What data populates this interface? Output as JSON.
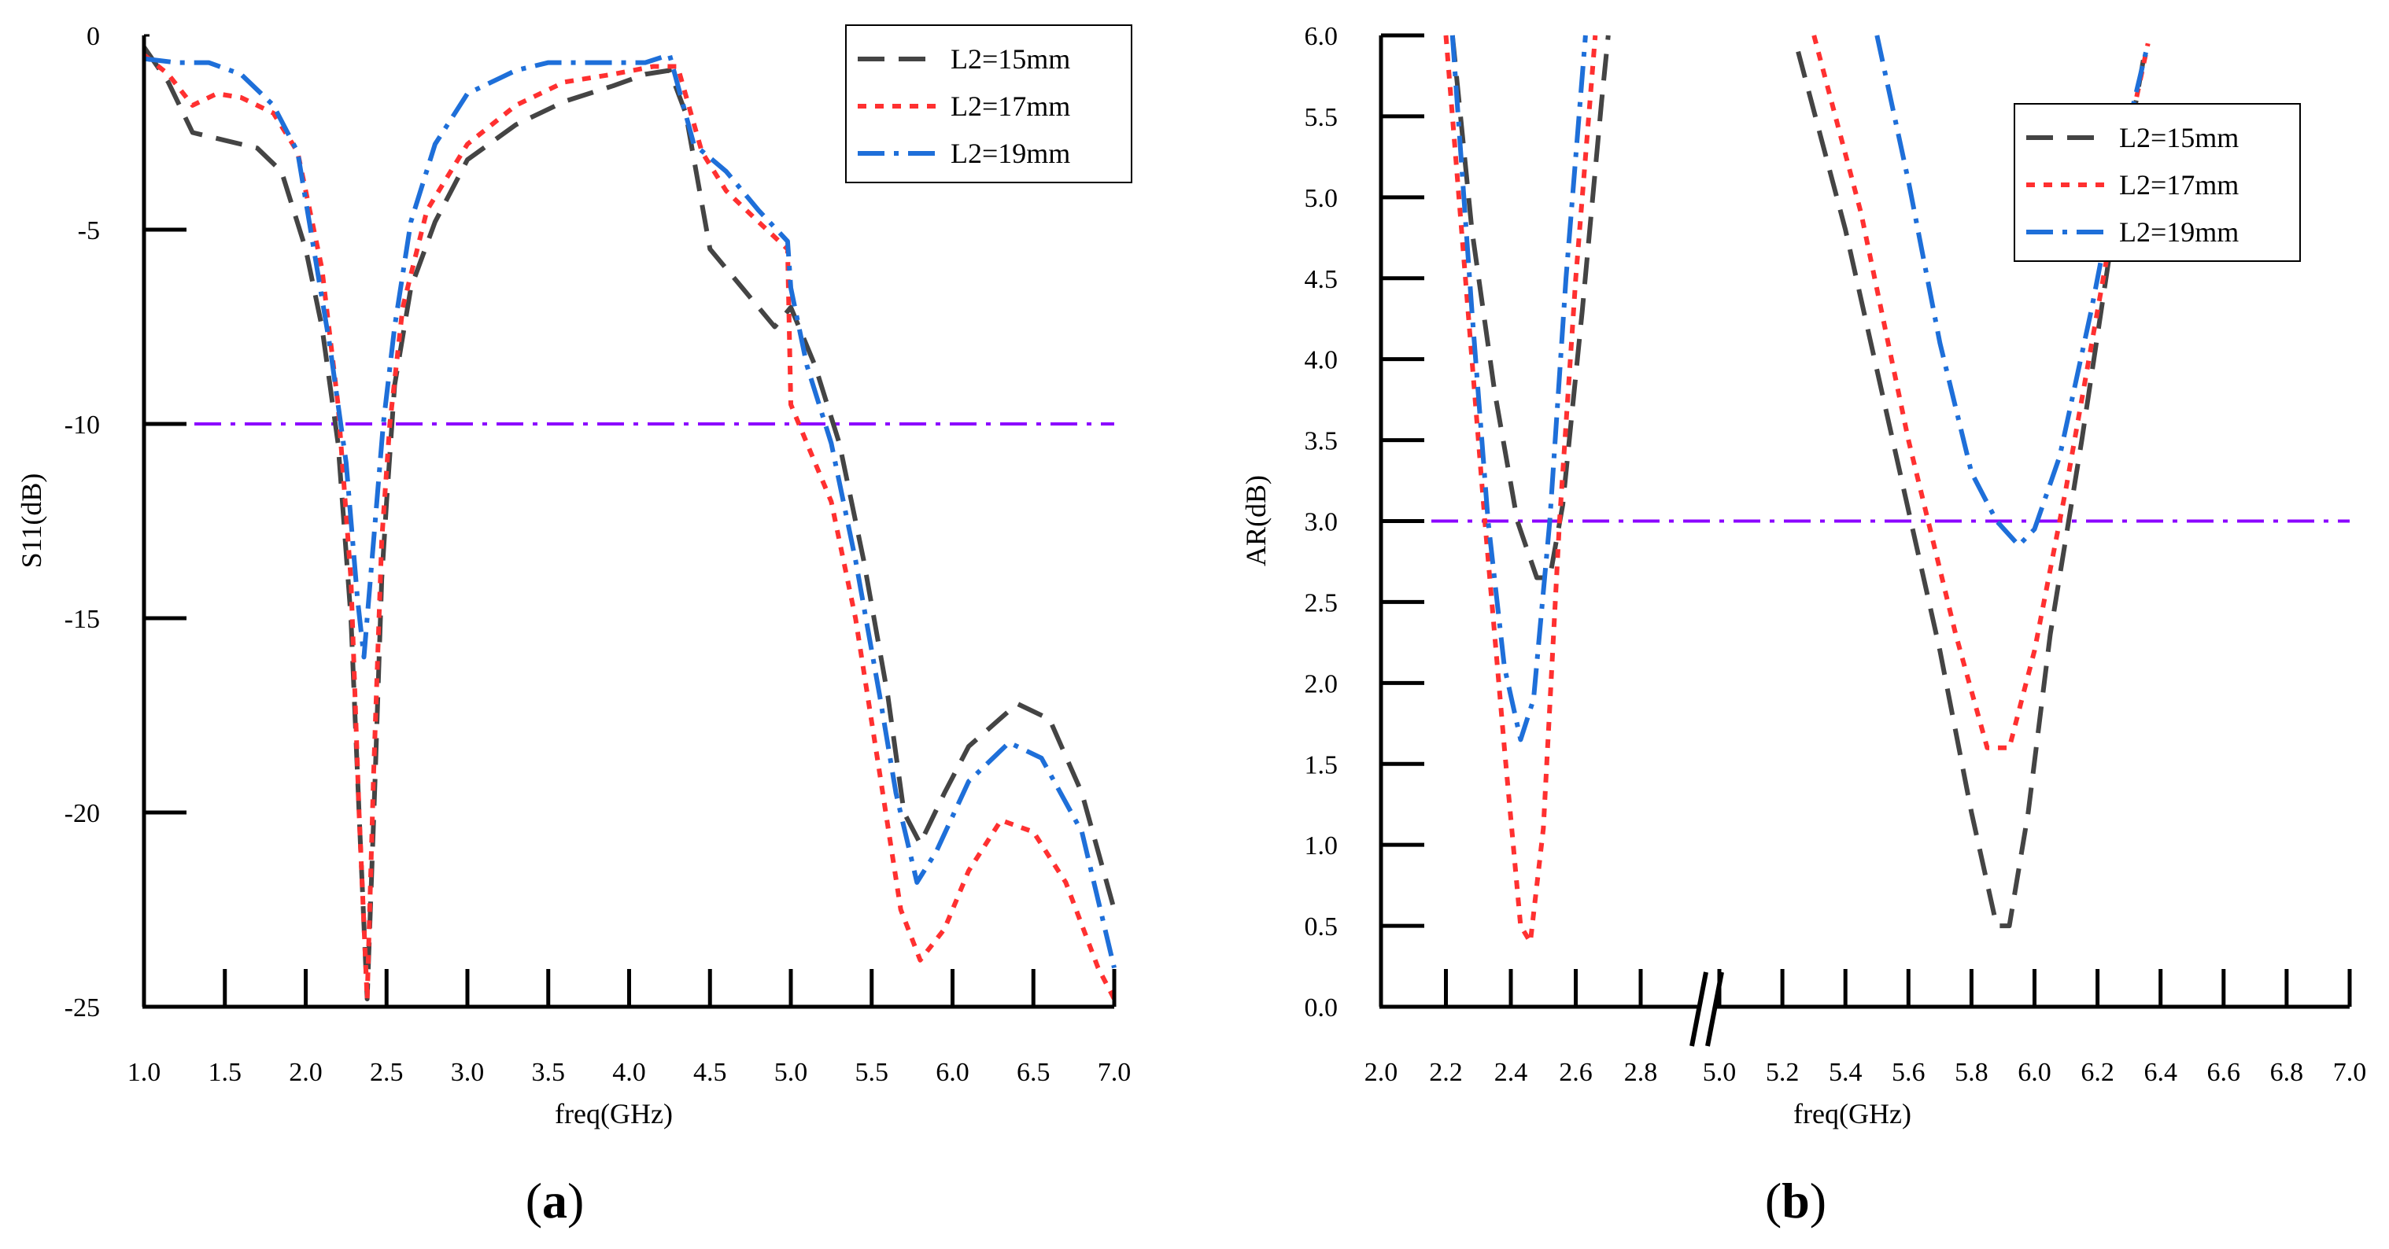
{
  "chart_data": [
    {
      "type": "line",
      "panel_label": "(a)",
      "panel_letter": "a",
      "xlabel": "freq(GHz)",
      "ylabel": "S11(dB)",
      "xlim": [
        1.0,
        7.0
      ],
      "ylim": [
        -25,
        0
      ],
      "x_ticks": [
        "1.0",
        "1.5",
        "2.0",
        "2.5",
        "3.0",
        "3.5",
        "4.0",
        "4.5",
        "5.0",
        "5.5",
        "6.0",
        "6.5",
        "7.0"
      ],
      "y_ticks": [
        "0",
        "-5",
        "-10",
        "-15",
        "-20",
        "-25"
      ],
      "y_tick_values": [
        0,
        -5,
        -10,
        -15,
        -20,
        -25
      ],
      "legend_position": "top-right",
      "reference_line": {
        "y": -10,
        "color": "#8B00FF"
      },
      "series": [
        {
          "name": "L2=15mm",
          "color": "#444444",
          "dash": "dashed",
          "points": [
            [
              1.0,
              -0.3
            ],
            [
              1.15,
              -1.2
            ],
            [
              1.3,
              -2.5
            ],
            [
              1.5,
              -2.7
            ],
            [
              1.7,
              -2.9
            ],
            [
              1.85,
              -3.5
            ],
            [
              2.0,
              -5.5
            ],
            [
              2.1,
              -7.5
            ],
            [
              2.2,
              -10.5
            ],
            [
              2.28,
              -15
            ],
            [
              2.33,
              -20
            ],
            [
              2.38,
              -24.8
            ],
            [
              2.43,
              -19
            ],
            [
              2.47,
              -14
            ],
            [
              2.5,
              -12
            ],
            [
              2.55,
              -9
            ],
            [
              2.65,
              -6.5
            ],
            [
              2.8,
              -4.8
            ],
            [
              3.0,
              -3.2
            ],
            [
              3.3,
              -2.3
            ],
            [
              3.6,
              -1.7
            ],
            [
              3.9,
              -1.3
            ],
            [
              4.1,
              -1.0
            ],
            [
              4.25,
              -0.9
            ],
            [
              4.35,
              -2.0
            ],
            [
              4.5,
              -5.5
            ],
            [
              4.7,
              -6.5
            ],
            [
              4.9,
              -7.5
            ],
            [
              5.0,
              -7.0
            ],
            [
              5.15,
              -8.5
            ],
            [
              5.3,
              -10.5
            ],
            [
              5.45,
              -13.5
            ],
            [
              5.6,
              -17
            ],
            [
              5.7,
              -20.0
            ],
            [
              5.8,
              -20.8
            ],
            [
              5.95,
              -19.5
            ],
            [
              6.1,
              -18.3
            ],
            [
              6.4,
              -17.2
            ],
            [
              6.6,
              -17.6
            ],
            [
              6.8,
              -19.5
            ],
            [
              7.0,
              -22.5
            ]
          ]
        },
        {
          "name": "L2=17mm",
          "color": "#FF3030",
          "dash": "dotted",
          "points": [
            [
              1.0,
              -0.5
            ],
            [
              1.15,
              -1.0
            ],
            [
              1.3,
              -1.8
            ],
            [
              1.45,
              -1.5
            ],
            [
              1.6,
              -1.6
            ],
            [
              1.8,
              -2.0
            ],
            [
              1.95,
              -3.0
            ],
            [
              2.1,
              -6.0
            ],
            [
              2.2,
              -9.5
            ],
            [
              2.28,
              -14
            ],
            [
              2.33,
              -20
            ],
            [
              2.38,
              -24.8
            ],
            [
              2.42,
              -19
            ],
            [
              2.47,
              -13
            ],
            [
              2.52,
              -10
            ],
            [
              2.6,
              -7.0
            ],
            [
              2.75,
              -4.5
            ],
            [
              3.0,
              -2.8
            ],
            [
              3.3,
              -1.8
            ],
            [
              3.6,
              -1.2
            ],
            [
              3.9,
              -1.0
            ],
            [
              4.15,
              -0.8
            ],
            [
              4.3,
              -0.8
            ],
            [
              4.45,
              -3.0
            ],
            [
              4.6,
              -4.0
            ],
            [
              4.8,
              -4.8
            ],
            [
              4.98,
              -5.5
            ],
            [
              5.0,
              -9.5
            ],
            [
              5.1,
              -10.5
            ],
            [
              5.25,
              -12.0
            ],
            [
              5.4,
              -15.0
            ],
            [
              5.55,
              -19.0
            ],
            [
              5.68,
              -22.5
            ],
            [
              5.8,
              -23.8
            ],
            [
              5.95,
              -23.0
            ],
            [
              6.1,
              -21.5
            ],
            [
              6.3,
              -20.2
            ],
            [
              6.5,
              -20.5
            ],
            [
              6.7,
              -21.8
            ],
            [
              6.9,
              -24.0
            ],
            [
              7.0,
              -24.8
            ]
          ]
        },
        {
          "name": "L2=19mm",
          "color": "#1E6FD9",
          "dash": "dashdot",
          "points": [
            [
              1.0,
              -0.6
            ],
            [
              1.2,
              -0.7
            ],
            [
              1.4,
              -0.7
            ],
            [
              1.6,
              -1.0
            ],
            [
              1.8,
              -1.8
            ],
            [
              1.95,
              -3.0
            ],
            [
              2.05,
              -5.5
            ],
            [
              2.15,
              -8.0
            ],
            [
              2.25,
              -11.0
            ],
            [
              2.32,
              -14.5
            ],
            [
              2.36,
              -16.0
            ],
            [
              2.42,
              -13
            ],
            [
              2.48,
              -10
            ],
            [
              2.55,
              -7.5
            ],
            [
              2.65,
              -4.8
            ],
            [
              2.8,
              -2.8
            ],
            [
              3.0,
              -1.5
            ],
            [
              3.3,
              -0.9
            ],
            [
              3.5,
              -0.7
            ],
            [
              3.8,
              -0.7
            ],
            [
              4.1,
              -0.7
            ],
            [
              4.25,
              -0.5
            ],
            [
              4.4,
              -2.8
            ],
            [
              4.6,
              -3.5
            ],
            [
              4.8,
              -4.5
            ],
            [
              4.98,
              -5.3
            ],
            [
              5.0,
              -6.5
            ],
            [
              5.1,
              -8.5
            ],
            [
              5.25,
              -10.5
            ],
            [
              5.4,
              -13.5
            ],
            [
              5.55,
              -17.0
            ],
            [
              5.65,
              -19.5
            ],
            [
              5.78,
              -21.8
            ],
            [
              5.9,
              -21.0
            ],
            [
              6.1,
              -19.2
            ],
            [
              6.35,
              -18.2
            ],
            [
              6.55,
              -18.6
            ],
            [
              6.8,
              -20.5
            ],
            [
              7.0,
              -24.0
            ]
          ]
        }
      ]
    },
    {
      "type": "line",
      "panel_label": "(b)",
      "panel_letter": "b",
      "xlabel": "freq(GHz)",
      "ylabel": "AR(dB)",
      "x_break": {
        "from": 2.8,
        "to": 5.0
      },
      "xlim": [
        2.0,
        7.0
      ],
      "ylim": [
        0.0,
        6.0
      ],
      "x_ticks": [
        "2.0",
        "2.2",
        "2.4",
        "2.6",
        "2.8",
        "5.0",
        "5.2",
        "5.4",
        "5.6",
        "5.8",
        "6.0",
        "6.2",
        "6.4",
        "6.6",
        "6.8",
        "7.0"
      ],
      "x_tick_values": [
        2.0,
        2.2,
        2.4,
        2.6,
        2.8,
        5.0,
        5.2,
        5.4,
        5.6,
        5.8,
        6.0,
        6.2,
        6.4,
        6.6,
        6.8,
        7.0
      ],
      "y_ticks": [
        "0.0",
        "0.5",
        "1.0",
        "1.5",
        "2.0",
        "2.5",
        "3.0",
        "3.5",
        "4.0",
        "4.5",
        "5.0",
        "5.5",
        "6.0"
      ],
      "y_tick_values": [
        0.0,
        0.5,
        1.0,
        1.5,
        2.0,
        2.5,
        3.0,
        3.5,
        4.0,
        4.5,
        5.0,
        5.5,
        6.0
      ],
      "legend_position": "top-right",
      "reference_line": {
        "y": 3.0,
        "color": "#8B00FF"
      },
      "series": [
        {
          "name": "L2=15mm",
          "color": "#444444",
          "dash": "dashed",
          "segments": [
            [
              [
                2.22,
                6.0
              ],
              [
                2.28,
                4.8
              ],
              [
                2.35,
                3.8
              ],
              [
                2.42,
                3.0
              ],
              [
                2.48,
                2.65
              ],
              [
                2.52,
                2.65
              ],
              [
                2.56,
                3.1
              ],
              [
                2.62,
                4.3
              ],
              [
                2.68,
                5.6
              ],
              [
                2.7,
                6.0
              ]
            ],
            [
              [
                5.25,
                5.9
              ],
              [
                5.4,
                4.8
              ],
              [
                5.55,
                3.5
              ],
              [
                5.7,
                2.2
              ],
              [
                5.8,
                1.2
              ],
              [
                5.88,
                0.5
              ],
              [
                5.92,
                0.5
              ],
              [
                5.98,
                1.2
              ],
              [
                6.05,
                2.3
              ],
              [
                6.15,
                3.5
              ],
              [
                6.25,
                4.8
              ],
              [
                6.35,
                5.9
              ]
            ]
          ]
        },
        {
          "name": "L2=17mm",
          "color": "#FF3030",
          "dash": "dotted",
          "segments": [
            [
              [
                2.2,
                6.0
              ],
              [
                2.26,
                4.5
              ],
              [
                2.32,
                3.0
              ],
              [
                2.38,
                1.6
              ],
              [
                2.43,
                0.5
              ],
              [
                2.46,
                0.4
              ],
              [
                2.5,
                1.1
              ],
              [
                2.55,
                3.0
              ],
              [
                2.6,
                4.5
              ],
              [
                2.66,
                6.0
              ]
            ],
            [
              [
                5.3,
                6.0
              ],
              [
                5.45,
                4.9
              ],
              [
                5.6,
                3.5
              ],
              [
                5.75,
                2.3
              ],
              [
                5.85,
                1.6
              ],
              [
                5.92,
                1.6
              ],
              [
                6.0,
                2.2
              ],
              [
                6.1,
                3.2
              ],
              [
                6.2,
                4.3
              ],
              [
                6.3,
                5.4
              ],
              [
                6.36,
                5.95
              ]
            ]
          ]
        },
        {
          "name": "L2=19mm",
          "color": "#1E6FD9",
          "dash": "dashdot",
          "segments": [
            [
              [
                2.22,
                6.0
              ],
              [
                2.28,
                4.3
              ],
              [
                2.33,
                3.0
              ],
              [
                2.38,
                2.1
              ],
              [
                2.43,
                1.65
              ],
              [
                2.47,
                1.9
              ],
              [
                2.52,
                3.0
              ],
              [
                2.57,
                4.5
              ],
              [
                2.63,
                6.0
              ]
            ],
            [
              [
                5.5,
                6.0
              ],
              [
                5.6,
                5.1
              ],
              [
                5.7,
                4.1
              ],
              [
                5.8,
                3.3
              ],
              [
                5.88,
                3.0
              ],
              [
                5.95,
                2.85
              ],
              [
                6.0,
                2.95
              ],
              [
                6.08,
                3.4
              ],
              [
                6.18,
                4.3
              ],
              [
                6.28,
                5.3
              ],
              [
                6.36,
                5.95
              ]
            ]
          ]
        }
      ]
    }
  ]
}
